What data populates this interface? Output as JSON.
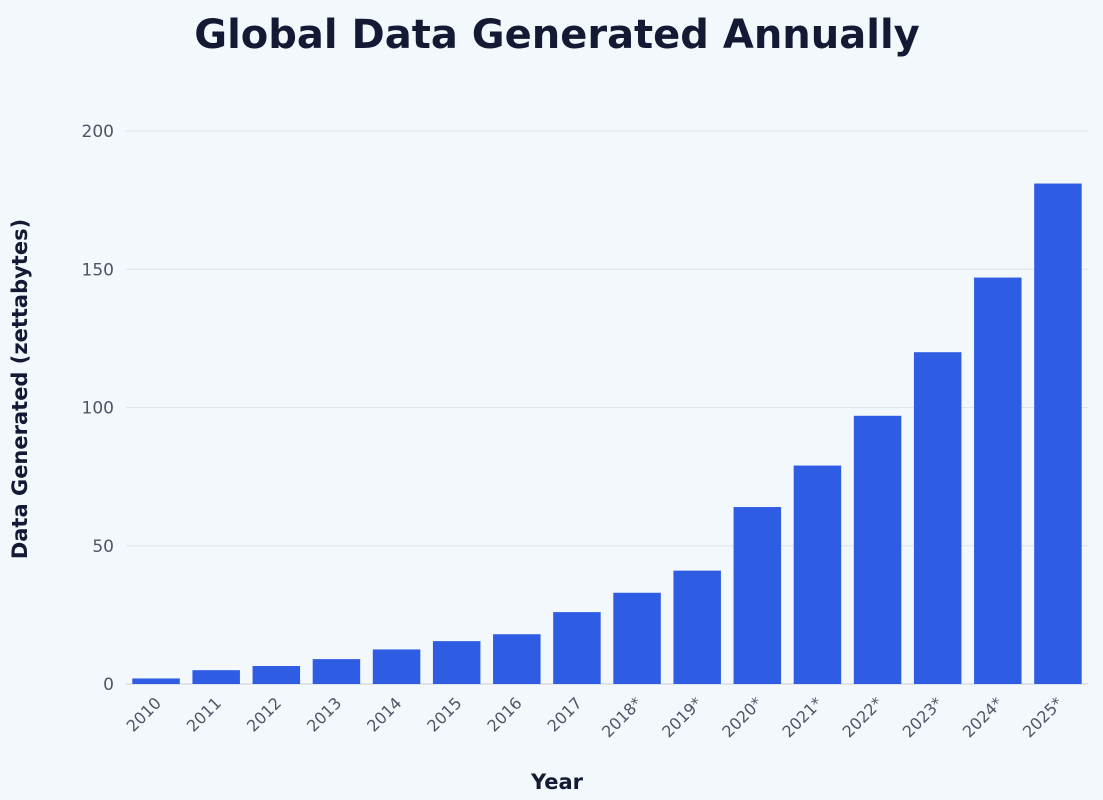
{
  "chart_data": {
    "type": "bar",
    "title": "Global Data Generated Annually",
    "xlabel": "Year",
    "ylabel": "Data Generated (zettabytes)",
    "categories": [
      "2010",
      "2011",
      "2012",
      "2013",
      "2014",
      "2015",
      "2016",
      "2017",
      "2018*",
      "2019*",
      "2020*",
      "2021*",
      "2022*",
      "2023*",
      "2024*",
      "2025*"
    ],
    "values": [
      2,
      5,
      6.5,
      9,
      12.5,
      15.5,
      18,
      26,
      33,
      41,
      64,
      79,
      97,
      120,
      147,
      181
    ],
    "ylim": [
      0,
      200
    ],
    "yticks": [
      0,
      50,
      100,
      150,
      200
    ],
    "grid": true,
    "bar_color": "#2e5ce3"
  }
}
